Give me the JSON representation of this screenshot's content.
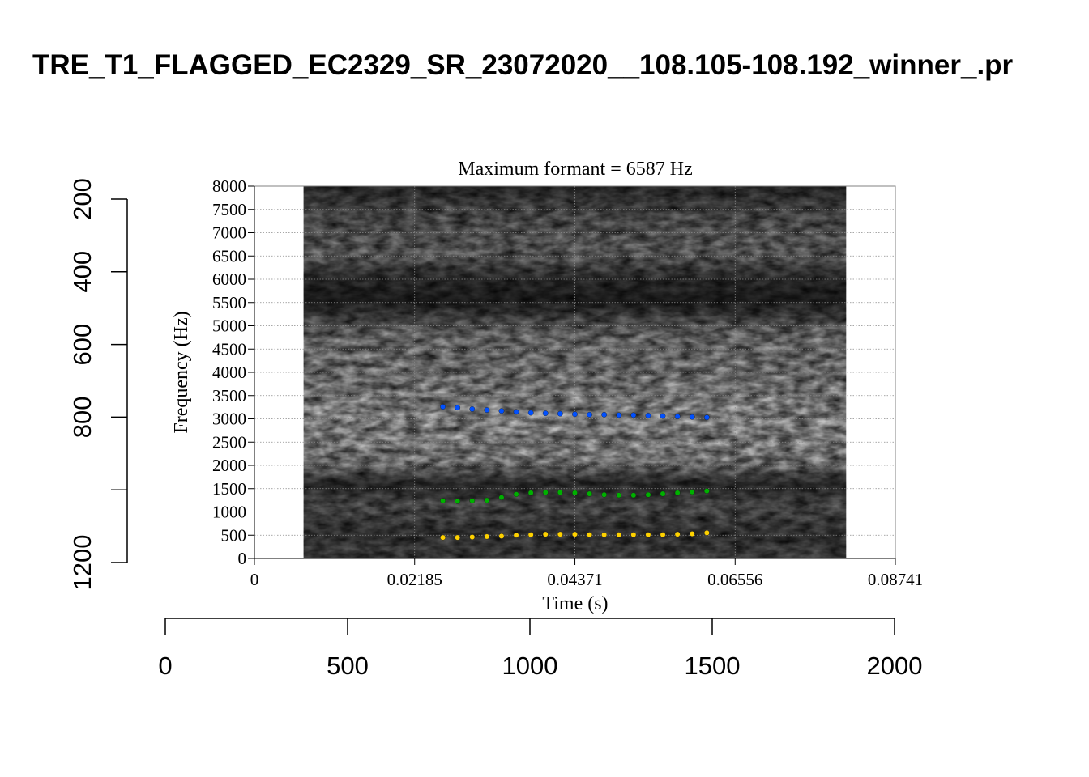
{
  "outer": {
    "title": "TRE_T1_FLAGGED_EC2329_SR_23072020__108.105-108.192_winner_.pr",
    "x_ticks": [
      "0",
      "500",
      "1000",
      "1500",
      "2000"
    ],
    "y_ticks": [
      "200",
      "400",
      "600",
      "800",
      "1200"
    ],
    "x_range": [
      0,
      2000
    ],
    "y_range": [
      1200,
      200
    ]
  },
  "chart_data": {
    "type": "scatter",
    "title": "Maximum formant  =  6587 Hz",
    "xlabel": "Time (s)",
    "ylabel": "Frequency (Hz)",
    "xlim": [
      0,
      0.08741
    ],
    "ylim": [
      0,
      8000
    ],
    "x_tick_labels": [
      "0",
      "0.02185",
      "0.04371",
      "0.06556",
      "0.08741"
    ],
    "y_tick_labels": [
      "0",
      "500",
      "1000",
      "1500",
      "2000",
      "2500",
      "3000",
      "3500",
      "4000",
      "4500",
      "5000",
      "5500",
      "6000",
      "6500",
      "7000",
      "7500",
      "8000"
    ],
    "grid": true,
    "spectrogram_time_range": [
      0.0067,
      0.0807
    ],
    "x": [
      0.0257,
      0.0277,
      0.0297,
      0.0317,
      0.0337,
      0.0357,
      0.0377,
      0.0397,
      0.0417,
      0.0437,
      0.0457,
      0.0477,
      0.0497,
      0.0517,
      0.0537,
      0.0557,
      0.0577,
      0.0597,
      0.0617
    ],
    "series": [
      {
        "color": "#0050ff",
        "values": [
          3260,
          3240,
          3210,
          3190,
          3170,
          3150,
          3130,
          3120,
          3110,
          3100,
          3090,
          3090,
          3080,
          3080,
          3070,
          3060,
          3050,
          3040,
          3030
        ]
      },
      {
        "color": "#00b000",
        "values": [
          1240,
          1230,
          1240,
          1250,
          1310,
          1380,
          1410,
          1420,
          1420,
          1410,
          1390,
          1370,
          1360,
          1360,
          1370,
          1390,
          1410,
          1430,
          1450
        ]
      },
      {
        "color": "#ffd200",
        "values": [
          450,
          450,
          460,
          470,
          480,
          500,
          510,
          520,
          520,
          520,
          510,
          510,
          510,
          510,
          510,
          510,
          520,
          530,
          550
        ]
      }
    ]
  }
}
